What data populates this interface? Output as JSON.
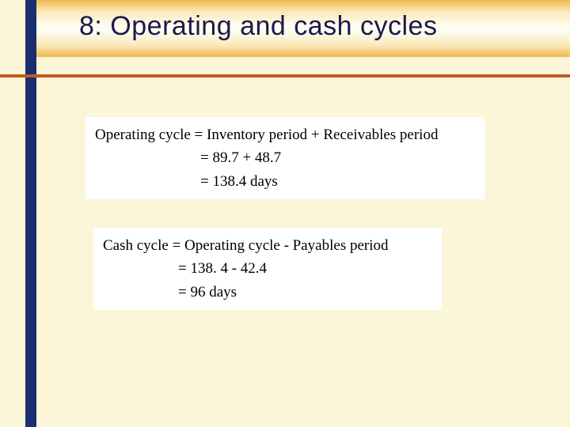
{
  "slide": {
    "title": "8: Operating and cash cycles",
    "colors": {
      "background": "#fcf6d8",
      "left_bar": "#1a2f6f",
      "rule": "#c05a22",
      "title_text": "#1a1a4a",
      "box_bg": "#ffffff",
      "header_gradient": [
        "#f0b84d",
        "#fbe8b8",
        "#fefcf0",
        "#fbe8b8",
        "#f0b84d"
      ]
    },
    "title_fontsize": 34,
    "equation_fontsize": 19,
    "equation_font": "Times New Roman"
  },
  "box1": {
    "line1": "Operating cycle = Inventory period + Receivables period",
    "line2_indent": "       = 89.7 + 48.7",
    "line3_indent": "       = 138.4 days",
    "values": {
      "inventory_period": 89.7,
      "receivables_period": 48.7,
      "operating_cycle": 138.4,
      "unit": "days"
    }
  },
  "box2": {
    "line1": "Cash cycle = Operating cycle - Payables period",
    "line2_indent": "     = 138. 4 - 42.4",
    "line3_indent": "     = 96 days",
    "values": {
      "operating_cycle": 138.4,
      "payables_period": 42.4,
      "cash_cycle": 96,
      "unit": "days"
    }
  }
}
